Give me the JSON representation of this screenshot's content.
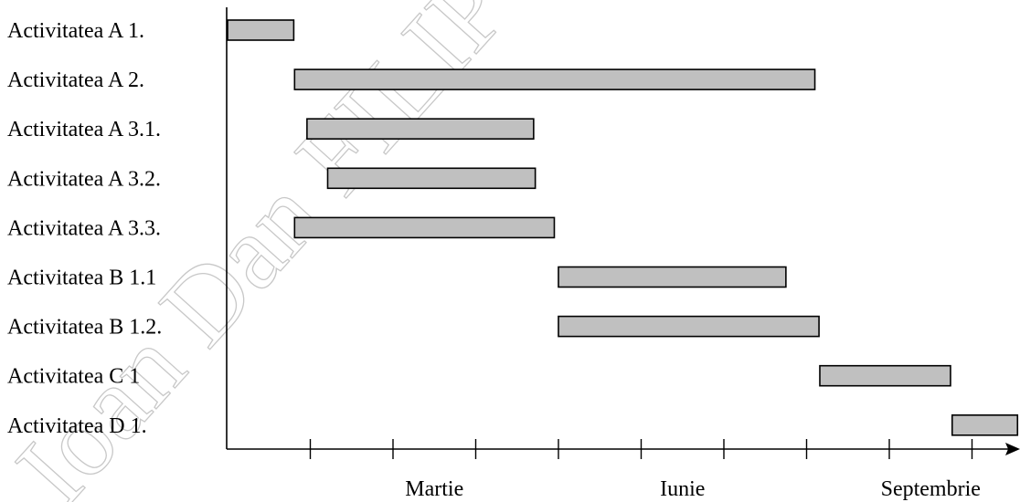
{
  "chart_data": {
    "type": "gantt",
    "x_unit": "months",
    "x_range": [
      0,
      12
    ],
    "tick_count": 9,
    "month_labels": [
      {
        "text": "Martie",
        "at": 2
      },
      {
        "text": "Iunie",
        "at": 5
      },
      {
        "text": "Septembrie",
        "at": 8
      }
    ],
    "tasks": [
      {
        "label": "Activitatea A 1.",
        "start": 0.0,
        "end": 0.8
      },
      {
        "label": "Activitatea A 2.",
        "start": 0.81,
        "end": 7.1
      },
      {
        "label": "Activitatea A 3.1.",
        "start": 0.96,
        "end": 3.7
      },
      {
        "label": "Activitatea A 3.2.",
        "start": 1.21,
        "end": 3.72
      },
      {
        "label": "Activitatea A 3.3.",
        "start": 0.81,
        "end": 3.95
      },
      {
        "label": "Activitatea B 1.1",
        "start": 4.0,
        "end": 6.75
      },
      {
        "label": "Activitatea B 1.2.",
        "start": 4.0,
        "end": 7.15
      },
      {
        "label": "Activitatea C 1",
        "start": 7.16,
        "end": 8.74
      },
      {
        "label": "Activitatea D 1.",
        "start": 8.76,
        "end": 9.55
      }
    ],
    "bar_color": "#c0c0c0"
  },
  "watermark": "Ioan Dan FILIPOIU"
}
